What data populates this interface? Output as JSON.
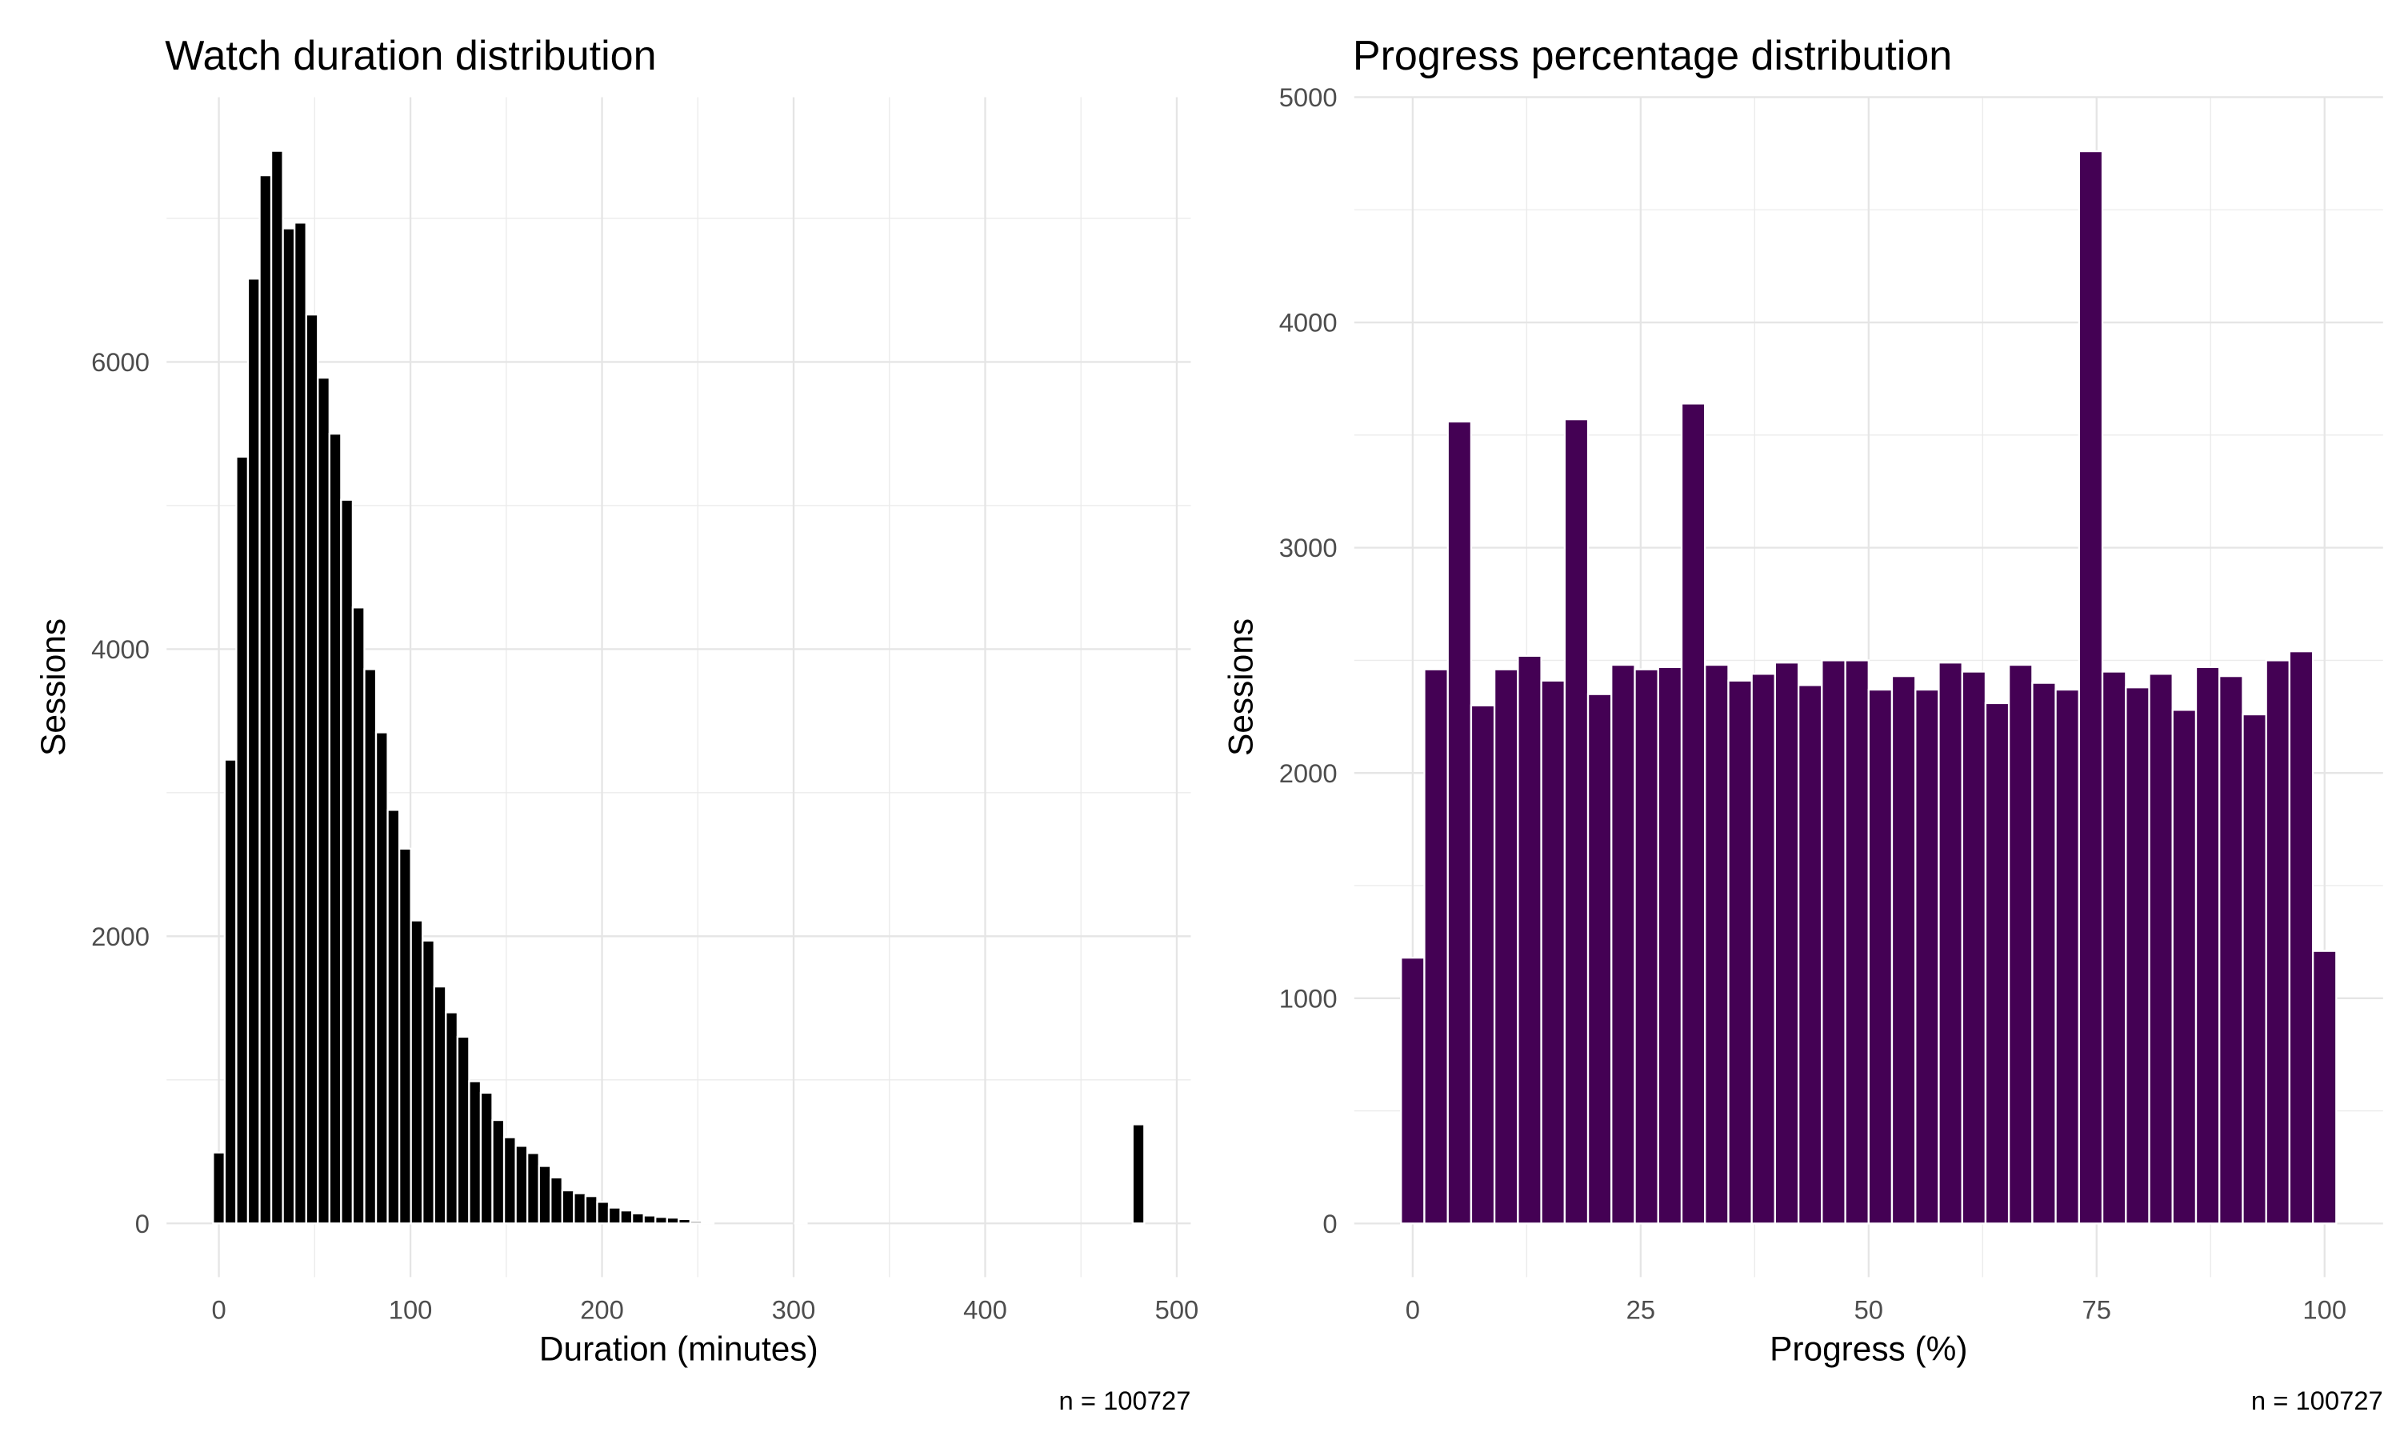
{
  "chart_data": [
    {
      "type": "histogram",
      "title": "Watch duration distribution",
      "x_label": "Duration (minutes)",
      "y_label": "Sessions",
      "caption": "n = 100727",
      "color": "#000000",
      "grid": true,
      "bins": [
        -3.04,
        3.04,
        9.11,
        15.19,
        21.27,
        27.34,
        33.42,
        39.49,
        45.57,
        51.65,
        57.72,
        63.8,
        69.87,
        75.95,
        82.03,
        88.1,
        94.18,
        100.25,
        106.33,
        112.41,
        118.48,
        124.56,
        130.63,
        136.71,
        142.78,
        148.86,
        154.94,
        161.01,
        167.09,
        173.16,
        179.24,
        185.32,
        191.39,
        197.47,
        203.54,
        209.62,
        215.7,
        221.77,
        227.85,
        233.92,
        240.0,
        246.08,
        252.15,
        258.23,
        264.3,
        270.38,
        276.46,
        282.53,
        288.61,
        294.68,
        300.76,
        306.84,
        312.91,
        318.99,
        325.06,
        331.14,
        337.22,
        343.29,
        349.37,
        355.44,
        361.52,
        367.59,
        373.67,
        379.75,
        385.82,
        391.9,
        397.97,
        404.05,
        410.13,
        416.2,
        422.28,
        428.35,
        434.43,
        440.51,
        446.58,
        452.66,
        458.73,
        464.81,
        470.89,
        476.96,
        483.04
      ],
      "values": [
        494,
        3230,
        5340,
        6580,
        7300,
        7470,
        6930,
        6970,
        6330,
        5890,
        5500,
        5040,
        4290,
        3860,
        3420,
        2880,
        2610,
        2110,
        1970,
        1650,
        1470,
        1300,
        990,
        910,
        720,
        600,
        540,
        490,
        400,
        320,
        230,
        210,
        190,
        150,
        110,
        90,
        70,
        55,
        45,
        40,
        30,
        15,
        5,
        0,
        0,
        0,
        0,
        0,
        0,
        0,
        3,
        0,
        0,
        0,
        0,
        0,
        0,
        0,
        0,
        0,
        0,
        0,
        0,
        0,
        0,
        0,
        0,
        0,
        0,
        0,
        0,
        0,
        0,
        0,
        0,
        0,
        0,
        0,
        0,
        690
      ],
      "xlim": [
        -27.3,
        507.3
      ],
      "xticks": [
        0,
        100,
        200,
        300,
        400,
        500
      ],
      "ylim": [
        -374,
        7844
      ],
      "yticks": [
        0,
        2000,
        4000,
        6000
      ]
    },
    {
      "type": "histogram",
      "title": "Progress percentage distribution",
      "x_label": "Progress (%)",
      "y_label": "Sessions",
      "caption": "n = 100727",
      "color": "#440154",
      "grid": true,
      "bins": [
        -1.28,
        1.28,
        3.85,
        6.41,
        8.97,
        11.54,
        14.1,
        16.67,
        19.23,
        21.79,
        24.36,
        26.92,
        29.49,
        32.05,
        34.62,
        37.18,
        39.74,
        42.31,
        44.87,
        47.44,
        50.0,
        52.56,
        55.13,
        57.69,
        60.26,
        62.82,
        65.38,
        67.95,
        70.51,
        73.08,
        75.64,
        78.21,
        80.77,
        83.33,
        85.9,
        88.46,
        91.03,
        93.59,
        96.15,
        98.72,
        101.28
      ],
      "values": [
        1180,
        2460,
        3560,
        2300,
        2460,
        2520,
        2410,
        3570,
        2350,
        2480,
        2460,
        2470,
        3640,
        2480,
        2410,
        2440,
        2490,
        2390,
        2500,
        2500,
        2370,
        2430,
        2370,
        2490,
        2450,
        2310,
        2480,
        2400,
        2370,
        4760,
        2450,
        2380,
        2440,
        2280,
        2470,
        2430,
        2260,
        2500,
        2540,
        1210
      ],
      "xlim": [
        -6.41,
        106.41
      ],
      "xticks": [
        0,
        25,
        50,
        75,
        100
      ],
      "ylim": [
        -238,
        5000
      ],
      "yticks": [
        0,
        1000,
        2000,
        3000,
        4000,
        5000
      ]
    }
  ]
}
